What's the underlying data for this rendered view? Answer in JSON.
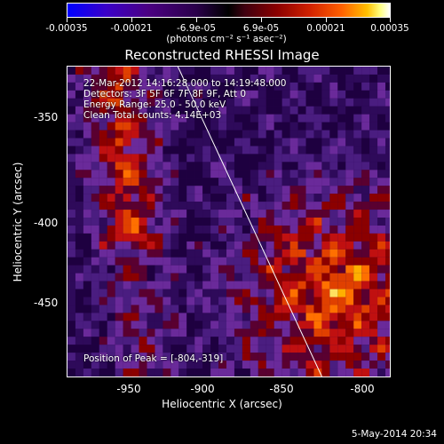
{
  "colorbar": {
    "ticks": [
      "-0.00035",
      "-0.00021",
      "-6.9e-05",
      "6.9e-05",
      "0.00021",
      "0.00035"
    ],
    "units": "(photons cm⁻² s⁻¹ asec⁻²)"
  },
  "title": "Reconstructed RHESSI Image",
  "info": {
    "time": "22-Mar-2012 14:16:28.000 to 14:19:48.000",
    "detectors": "Detectors: 3F 5F 6F 7F 8F 9F, Att 0",
    "energy": "Energy Range: 25.0 - 50.0 keV",
    "clean": "Clean    Total counts: 4.14E+03",
    "peak": "Position of Peak = [-804,-319]"
  },
  "axes": {
    "xlabel": "Heliocentric X (arcsec)",
    "ylabel": "Heliocentric Y (arcsec)",
    "xticks": [
      "-950",
      "-900",
      "-850",
      "-800"
    ],
    "yticks": [
      "-350",
      "-400",
      "-450"
    ]
  },
  "footer": {
    "timestamp": "5-May-2014 20:34"
  },
  "colors": {
    "background": "#000000",
    "text": "#ffffff",
    "limb": "#ffffff"
  }
}
